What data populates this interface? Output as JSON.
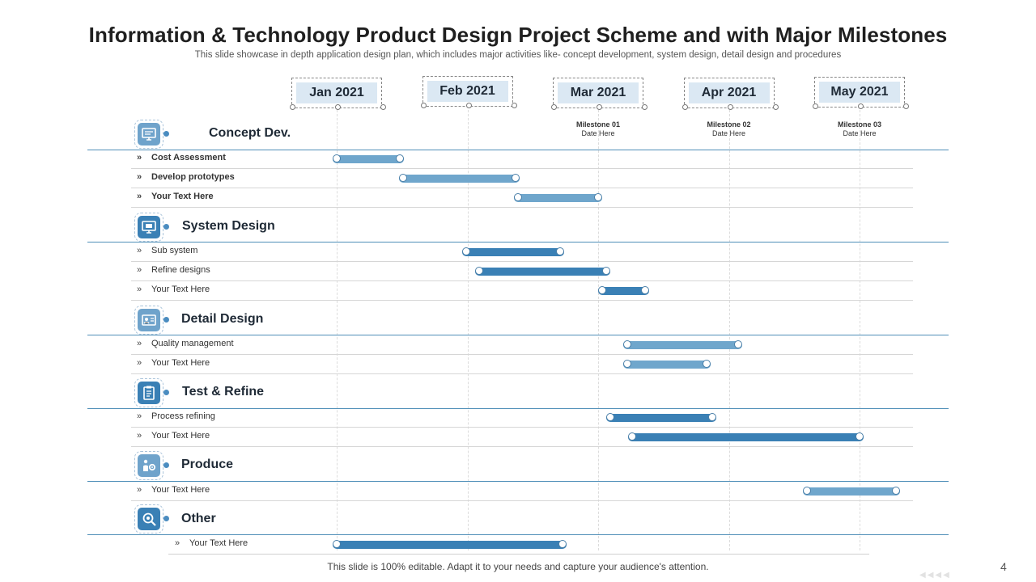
{
  "title": "Information & Technology Product Design Project Scheme and with Major Milestones",
  "subtitle": "This slide showcase in depth application design plan, which includes major activities like- concept development, system design, detail design and procedures",
  "chart_data": {
    "type": "gantt",
    "months": [
      "Jan 2021",
      "Feb 2021",
      "Mar 2021",
      "Apr 2021",
      "May 2021"
    ],
    "milestones": [
      {
        "name": "Milestone 01",
        "date": "Date Here",
        "month_index": 2
      },
      {
        "name": "Milestone 02",
        "date": "Date Here",
        "month_index": 3
      },
      {
        "name": "Milestone 03",
        "date": "Date Here",
        "month_index": 4
      }
    ],
    "categories": [
      {
        "name": "Concept Dev.",
        "icon": "monitor-icon",
        "tasks": [
          {
            "label": "Cost Assessment",
            "bold": true,
            "start": 0.0,
            "end": 0.48
          },
          {
            "label": "Develop prototypes",
            "bold": true,
            "start": 0.51,
            "end": 1.37
          },
          {
            "label": "Your Text Here",
            "bold": true,
            "start": 1.39,
            "end": 2.0
          }
        ]
      },
      {
        "name": "System Design",
        "icon": "system-monitor-icon",
        "tasks": [
          {
            "label": "Sub system",
            "bold": false,
            "start": 0.99,
            "end": 1.71
          },
          {
            "label": "Refine designs",
            "bold": false,
            "start": 1.09,
            "end": 2.06
          },
          {
            "label": "Your Text Here",
            "bold": false,
            "start": 2.03,
            "end": 2.36
          }
        ]
      },
      {
        "name": "Detail Design",
        "icon": "id-card-icon",
        "tasks": [
          {
            "label": "Quality management",
            "bold": false,
            "start": 2.22,
            "end": 3.07
          },
          {
            "label": "Your Text Here",
            "bold": false,
            "start": 2.22,
            "end": 2.83
          }
        ]
      },
      {
        "name": "Test & Refine",
        "icon": "clipboard-icon",
        "tasks": [
          {
            "label": "Process refining",
            "bold": false,
            "start": 2.09,
            "end": 2.87
          },
          {
            "label": "Your Text Here",
            "bold": false,
            "start": 2.26,
            "end": 4.0
          }
        ]
      },
      {
        "name": "Produce",
        "icon": "production-icon",
        "tasks": [
          {
            "label": "Your Text Here",
            "bold": false,
            "start": 3.6,
            "end": 4.28
          }
        ]
      },
      {
        "name": "Other",
        "icon": "magnifier-gear-icon",
        "tasks": [
          {
            "label": "Your Text Here",
            "bold": false,
            "start": 0.0,
            "end": 1.73
          }
        ]
      }
    ]
  },
  "colors": {
    "bar_light": "#6fa6cc",
    "bar_dark": "#3a80b5",
    "icon_light": "#6fa3cb",
    "icon_dark": "#3a80b5"
  },
  "footer": "This slide is 100% editable. Adapt it to your needs and capture your audience's attention.",
  "page_number": "4"
}
